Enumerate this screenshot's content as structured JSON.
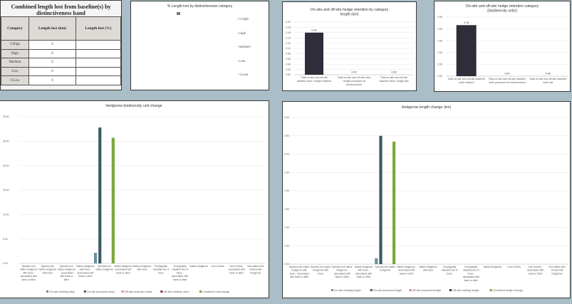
{
  "table": {
    "title_line1": "Combined length lost from baseline(s) by",
    "title_line2": "distinctiveness band",
    "headers": [
      "Category",
      "Length lost (km)",
      "Length lost (%)"
    ],
    "rows": [
      {
        "category": "V.High",
        "length_km": "0",
        "length_pct": ""
      },
      {
        "category": "High",
        "length_km": "0",
        "length_pct": ""
      },
      {
        "category": "Medium",
        "length_km": "0",
        "length_pct": ""
      },
      {
        "category": "Low",
        "length_km": "0",
        "length_pct": ""
      },
      {
        "category": "V.Low",
        "length_km": "0",
        "length_pct": ""
      }
    ]
  },
  "pie_panel": {
    "title": "% Length lost by distinctiveness category",
    "legend": [
      "V.High",
      "High",
      "Medium",
      "Low",
      "V.Low"
    ],
    "legend_colors": [
      "#e05050",
      "#d87070",
      "#d89090",
      "#e0a0a0",
      "#e8b8b8"
    ]
  },
  "chart_data": [
    {
      "type": "bar",
      "title_line1": "On-site and off-site hedge retention by category",
      "title_line2": "length (km)",
      "categories": [
        [
          "Total on-site and off-site",
          "baseline area / length retained"
        ],
        [
          "Total on-site and off-site area",
          "/ length proposed for",
          "enhancement"
        ],
        [
          "Total on-site and off-site",
          "baseline area / length lost"
        ]
      ],
      "values": [
        0.16,
        0.0,
        0.0
      ],
      "data_labels": [
        "0.16",
        "0.00",
        "0.00"
      ],
      "yticks": [
        "0.00",
        "0.02",
        "0.04",
        "0.06",
        "0.08",
        "0.10",
        "0.12",
        "0.14",
        "0.16",
        "0.18",
        "0.20"
      ],
      "ylim": [
        0,
        0.2
      ],
      "color": "#2e2e3a"
    },
    {
      "type": "bar",
      "title_line1": "On-site and off-site hedge retention category",
      "title_line2": "(biodiversity units)",
      "categories": [
        [
          "Total on-site and off-site baseline",
          "units retained"
        ],
        [
          "Total on-site and off-site baseline",
          "units proposed for enhancement"
        ],
        [
          "Total on-site and off-site baseline",
          "units lost"
        ]
      ],
      "values": [
        2.16,
        0.0,
        0.0
      ],
      "data_labels": [
        "2.16",
        "0.00",
        "0.00"
      ],
      "yticks": [
        "0.00",
        "0.50",
        "1.00",
        "1.50",
        "2.00",
        "2.50"
      ],
      "ylim": [
        0,
        2.5
      ],
      "color": "#2e2e3a"
    },
    {
      "type": "bar",
      "title": "Hedgerow biodiversity unit change",
      "categories": [
        [
          "Species-rich",
          "native hedgerow",
          "with trees -",
          "associated with",
          "bank or ditch"
        ],
        [
          "Species-rich",
          "native hedgerow",
          "with trees"
        ],
        [
          "Species-rich",
          "native hedgerow",
          "- associated",
          "with bank or",
          "ditch"
        ],
        [
          "Native hedgerow",
          "with trees -",
          "associated with",
          "bank or ditch"
        ],
        [
          "Species-rich",
          "native hedgerow"
        ],
        [
          "Native hedgerow",
          "associated with",
          "bank or ditch"
        ],
        [
          "Native hedgerow",
          "with trees"
        ],
        [
          "Ecologically",
          "valuable line of",
          "trees"
        ],
        [
          "Ecologically",
          "valuable line of",
          "trees -",
          "associated with",
          "bank or ditch"
        ],
        [
          "Native hedgerow"
        ],
        [
          "Line of trees"
        ],
        [
          "Line of trees -",
          "associated with",
          "bank or ditch"
        ],
        [
          "Non-native and",
          "ornamental",
          "hedgerow"
        ]
      ],
      "series": [
        {
          "name": "On-site existing value",
          "color": "#6a8fa0",
          "values": [
            0,
            0,
            0,
            0,
            2.16,
            0,
            0,
            0,
            0,
            0,
            0,
            0,
            0
          ]
        },
        {
          "name": "On-site proposed value",
          "color": "#3d5b66",
          "values": [
            0,
            0,
            0,
            0,
            27.8,
            0,
            0,
            0,
            0,
            0,
            0,
            0,
            0
          ]
        },
        {
          "name": "Off-site proposed value",
          "color": "#d98a80",
          "values": [
            0,
            0,
            0,
            0,
            0,
            0,
            0,
            0,
            0,
            0,
            0,
            0,
            0
          ]
        },
        {
          "name": "Off-site existing value",
          "color": "#8a2a2a",
          "values": [
            0,
            0,
            0,
            0,
            0,
            0,
            0,
            0,
            0,
            0,
            0,
            0,
            0
          ]
        },
        {
          "name": "Combined unit change",
          "color": "#7aa83a",
          "values": [
            0,
            0,
            0,
            0,
            25.7,
            0,
            0,
            0,
            0,
            0,
            0,
            0,
            0
          ]
        }
      ],
      "yticks": [
        "0.00",
        "5.00",
        "10.00",
        "15.00",
        "20.00",
        "25.00",
        "30.00"
      ],
      "ylim": [
        0,
        30
      ]
    },
    {
      "type": "bar",
      "title": "Hedgerow length change (km)",
      "categories": [
        [
          "Species-rich native",
          "hedgerow with",
          "trees - associated",
          "with bank or ditch"
        ],
        [
          "Species-rich native",
          "hedgerow with",
          "trees"
        ],
        [
          "Species-rich native",
          "hedgerow -",
          "associated with",
          "bank or ditch"
        ],
        [
          "Native hedgerow",
          "with trees -",
          "associated with",
          "bank or ditch"
        ],
        [
          "Species-rich native",
          "hedgerow"
        ],
        [
          "Native hedgerow -",
          "associated with",
          "bank or ditch"
        ],
        [
          "Native hedgerow",
          "with trees"
        ],
        [
          "Ecologically",
          "valuable line of",
          "trees"
        ],
        [
          "Ecologically",
          "valuable line of",
          "trees -",
          "associated with",
          "bank or ditch"
        ],
        [
          "Native hedgerow"
        ],
        [
          "Line of trees"
        ],
        [
          "Line of trees -",
          "associated with",
          "bank or ditch"
        ],
        [
          "Non-native and",
          "ornamental",
          "hedgerow"
        ]
      ],
      "series": [
        {
          "name": "On-site existing length",
          "color": "#6a8fa0",
          "values": [
            0,
            0,
            0,
            0,
            0.16,
            0,
            0,
            0,
            0,
            0,
            0,
            0,
            0
          ]
        },
        {
          "name": "On-site proposed length",
          "color": "#3d5b66",
          "values": [
            0,
            0,
            0,
            0,
            3.5,
            0,
            0,
            0,
            0,
            0,
            0,
            0,
            0
          ]
        },
        {
          "name": "Off-site proposed length",
          "color": "#d98a80",
          "values": [
            0,
            0,
            0,
            0,
            0,
            0,
            0,
            0,
            0,
            0,
            0,
            0,
            0
          ]
        },
        {
          "name": "Off-site existing length",
          "color": "#3a3a3a",
          "values": [
            0,
            0,
            0,
            0,
            0,
            0,
            0,
            0,
            0,
            0,
            0,
            0,
            0
          ]
        },
        {
          "name": "Combined length change",
          "color": "#7aa83a",
          "values": [
            0,
            0,
            0,
            0,
            3.34,
            0,
            0,
            0,
            0,
            0,
            0,
            0,
            0
          ]
        }
      ],
      "yticks": [
        "0.00",
        "0.50",
        "1.00",
        "1.50",
        "2.00",
        "2.50",
        "3.00",
        "3.50",
        "4.00"
      ],
      "ylim": [
        0,
        4
      ]
    }
  ]
}
